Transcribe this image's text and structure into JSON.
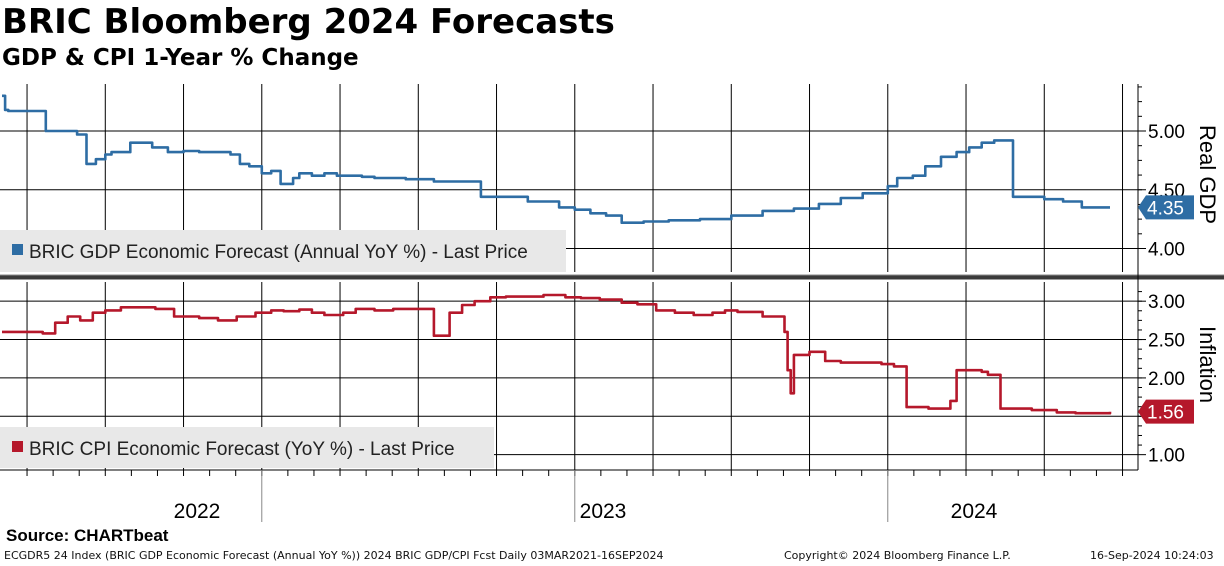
{
  "title": "BRIC Bloomberg 2024 Forecasts",
  "subtitle": "GDP & CPI 1-Year % Change",
  "source": "Source:  CHARTbeat",
  "footer": {
    "left": "ECGDR5 24 Index (BRIC GDP Economic Forecast (Annual YoY %)) 2024 BRIC GDP/CPI Fcst  Daily 03MAR2021-16SEP2024",
    "center": "Copyright© 2024 Bloomberg Finance L.P.",
    "right": "16-Sep-2024 10:24:03"
  },
  "colors": {
    "gdp": "#2e6da4",
    "cpi": "#b5182b"
  },
  "chart_data": [
    {
      "type": "line",
      "panel": "top",
      "ylabel": "Real GDP",
      "ylim": [
        3.8,
        5.4
      ],
      "yticks": [
        "4.00",
        "4.50",
        "5.00"
      ],
      "legend": "BRIC GDP Economic Forecast (Annual YoY %) - Last Price",
      "legend_position": "bottom-left",
      "last_value_label": "4.35",
      "series": [
        {
          "name": "BRIC GDP Economic Forecast (Annual YoY %) - Last Price",
          "x": [
            2021.17,
            2021.18,
            2021.19,
            2021.3,
            2021.31,
            2021.4,
            2021.41,
            2021.44,
            2021.47,
            2021.5,
            2021.52,
            2021.56,
            2021.58,
            2021.62,
            2021.65,
            2021.7,
            2021.75,
            2021.8,
            2021.86,
            2021.9,
            2021.93,
            2021.96,
            2022.0,
            2022.03,
            2022.06,
            2022.1,
            2022.12,
            2022.16,
            2022.2,
            2022.24,
            2022.28,
            2022.32,
            2022.36,
            2022.4,
            2022.46,
            2022.55,
            2022.7,
            2022.85,
            2022.95,
            2023.0,
            2023.05,
            2023.1,
            2023.15,
            2023.22,
            2023.3,
            2023.4,
            2023.5,
            2023.6,
            2023.7,
            2023.78,
            2023.85,
            2023.92,
            2024.0,
            2024.03,
            2024.08,
            2024.12,
            2024.17,
            2024.22,
            2024.26,
            2024.3,
            2024.34,
            2024.36,
            2024.4,
            2024.5,
            2024.56,
            2024.62,
            2024.66,
            2024.71
          ],
          "values": [
            5.3,
            5.18,
            5.17,
            5.17,
            5.0,
            5.0,
            4.97,
            4.72,
            4.76,
            4.8,
            4.82,
            4.82,
            4.9,
            4.9,
            4.86,
            4.82,
            4.83,
            4.82,
            4.82,
            4.8,
            4.72,
            4.7,
            4.64,
            4.66,
            4.55,
            4.6,
            4.64,
            4.62,
            4.64,
            4.62,
            4.62,
            4.61,
            4.6,
            4.6,
            4.59,
            4.57,
            4.44,
            4.4,
            4.35,
            4.33,
            4.3,
            4.28,
            4.22,
            4.23,
            4.24,
            4.25,
            4.28,
            4.32,
            4.34,
            4.38,
            4.43,
            4.47,
            4.53,
            4.6,
            4.62,
            4.7,
            4.78,
            4.82,
            4.86,
            4.9,
            4.92,
            4.92,
            4.44,
            4.42,
            4.4,
            4.35,
            4.35,
            4.35
          ]
        }
      ]
    },
    {
      "type": "line",
      "panel": "bottom",
      "ylabel": "Inflation",
      "ylim": [
        0.8,
        3.25
      ],
      "yticks": [
        "1.00",
        "1.50",
        "2.00",
        "2.50",
        "3.00"
      ],
      "legend": "BRIC CPI Economic Forecast (YoY %) - Last Price",
      "legend_position": "bottom-left",
      "last_value_label": "1.56",
      "series": [
        {
          "name": "BRIC CPI Economic Forecast (YoY %) - Last Price",
          "x": [
            2021.17,
            2021.25,
            2021.3,
            2021.34,
            2021.38,
            2021.42,
            2021.46,
            2021.5,
            2021.55,
            2021.6,
            2021.66,
            2021.72,
            2021.76,
            2021.8,
            2021.86,
            2021.92,
            2021.98,
            2022.03,
            2022.07,
            2022.12,
            2022.16,
            2022.2,
            2022.26,
            2022.3,
            2022.36,
            2022.42,
            2022.5,
            2022.55,
            2022.6,
            2022.64,
            2022.68,
            2022.73,
            2022.78,
            2022.83,
            2022.9,
            2022.97,
            2023.02,
            2023.08,
            2023.15,
            2023.2,
            2023.26,
            2023.32,
            2023.38,
            2023.44,
            2023.48,
            2023.52,
            2023.6,
            2023.67,
            2023.68,
            2023.69,
            2023.7,
            2023.75,
            2023.8,
            2023.85,
            2023.94,
            2023.98,
            2024.02,
            2024.06,
            2024.13,
            2024.17,
            2024.2,
            2024.22,
            2024.3,
            2024.32,
            2024.36,
            2024.46,
            2024.54,
            2024.6,
            2024.71
          ],
          "values": [
            2.6,
            2.6,
            2.58,
            2.72,
            2.8,
            2.75,
            2.85,
            2.88,
            2.92,
            2.92,
            2.9,
            2.8,
            2.8,
            2.78,
            2.75,
            2.8,
            2.85,
            2.88,
            2.87,
            2.89,
            2.85,
            2.82,
            2.85,
            2.9,
            2.88,
            2.9,
            2.9,
            2.55,
            2.85,
            2.95,
            3.0,
            3.05,
            3.06,
            3.06,
            3.08,
            3.05,
            3.04,
            3.02,
            2.98,
            2.96,
            2.88,
            2.85,
            2.82,
            2.85,
            2.88,
            2.86,
            2.8,
            2.6,
            2.1,
            1.8,
            2.3,
            2.34,
            2.22,
            2.2,
            2.2,
            2.18,
            2.15,
            1.62,
            1.6,
            1.6,
            1.7,
            2.1,
            2.08,
            2.04,
            1.6,
            1.58,
            1.55,
            1.54,
            1.56
          ]
        }
      ]
    }
  ],
  "x_axis": {
    "labels": [
      "2022",
      "2023",
      "2024"
    ]
  }
}
